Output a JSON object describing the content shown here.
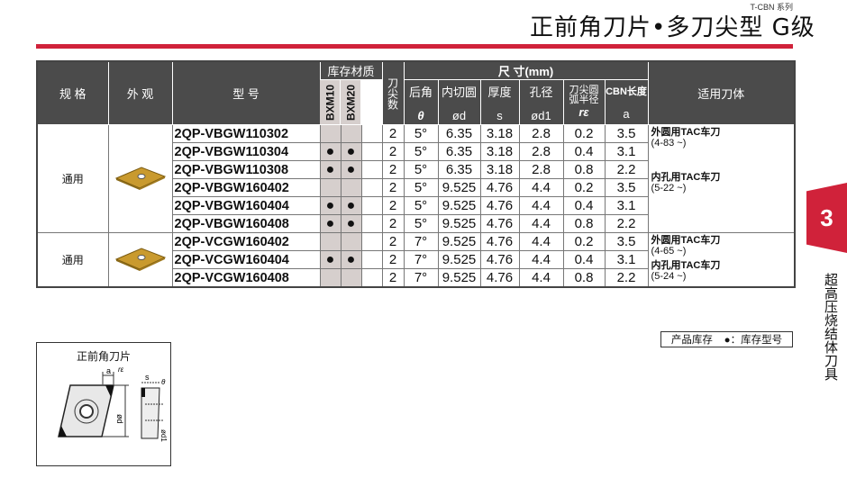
{
  "header": {
    "series": "T-CBN 系列",
    "title": "正前角刀片•多刀尖型 G级"
  },
  "colors": {
    "accent": "#d0223a",
    "header_bg": "#4b4b4b",
    "stock_shade": "#d6cfcd"
  },
  "table": {
    "headers": {
      "spec": "规 格",
      "appearance": "外 观",
      "model": "型 号",
      "stock": "库存材质",
      "grades": [
        "BXM10",
        "BXM20"
      ],
      "corners": "刀尖数",
      "dims": "尺 寸(mm)",
      "clearance": "后角",
      "clearance_sym": "θ",
      "ic": "内切圆",
      "ic_sym": "ød",
      "thick": "厚度",
      "thick_sym": "s",
      "hole": "孔径",
      "hole_sym": "ød1",
      "radius": "刀尖圆弧半径",
      "radius_sym": "rε",
      "cbn": "CBN长度",
      "cbn_sym": "a",
      "holder": "适用刀体"
    },
    "groups": [
      {
        "spec": "通用",
        "image": "rhombic-insert-icon",
        "holders": [
          {
            "name": "外圆用TAC车刀",
            "range": "(4-83 ~)"
          },
          {
            "name": "内孔用TAC车刀",
            "range": "(5-22 ~)"
          }
        ],
        "rows": [
          {
            "model": "2QP-VBGW110302",
            "bxm10": "",
            "bxm20": "",
            "corners": "2",
            "theta": "5°",
            "d": "6.35",
            "s": "3.18",
            "d1": "2.8",
            "r": "0.2",
            "a": "3.5"
          },
          {
            "model": "2QP-VBGW110304",
            "bxm10": "●",
            "bxm20": "●",
            "corners": "2",
            "theta": "5°",
            "d": "6.35",
            "s": "3.18",
            "d1": "2.8",
            "r": "0.4",
            "a": "3.1"
          },
          {
            "model": "2QP-VBGW110308",
            "bxm10": "●",
            "bxm20": "●",
            "corners": "2",
            "theta": "5°",
            "d": "6.35",
            "s": "3.18",
            "d1": "2.8",
            "r": "0.8",
            "a": "2.2"
          },
          {
            "model": "2QP-VBGW160402",
            "bxm10": "",
            "bxm20": "",
            "corners": "2",
            "theta": "5°",
            "d": "9.525",
            "s": "4.76",
            "d1": "4.4",
            "r": "0.2",
            "a": "3.5"
          },
          {
            "model": "2QP-VBGW160404",
            "bxm10": "●",
            "bxm20": "●",
            "corners": "2",
            "theta": "5°",
            "d": "9.525",
            "s": "4.76",
            "d1": "4.4",
            "r": "0.4",
            "a": "3.1"
          },
          {
            "model": "2QP-VBGW160408",
            "bxm10": "●",
            "bxm20": "●",
            "corners": "2",
            "theta": "5°",
            "d": "9.525",
            "s": "4.76",
            "d1": "4.4",
            "r": "0.8",
            "a": "2.2"
          }
        ]
      },
      {
        "spec": "通用",
        "image": "rhombic-insert-icon",
        "holders": [
          {
            "name": "外圆用TAC车刀",
            "range": "(4-65 ~)"
          },
          {
            "name": "内孔用TAC车刀",
            "range": "(5-24 ~)"
          }
        ],
        "rows": [
          {
            "model": "2QP-VCGW160402",
            "bxm10": "",
            "bxm20": "",
            "corners": "2",
            "theta": "7°",
            "d": "9.525",
            "s": "4.76",
            "d1": "4.4",
            "r": "0.2",
            "a": "3.5"
          },
          {
            "model": "2QP-VCGW160404",
            "bxm10": "●",
            "bxm20": "●",
            "corners": "2",
            "theta": "7°",
            "d": "9.525",
            "s": "4.76",
            "d1": "4.4",
            "r": "0.4",
            "a": "3.1"
          },
          {
            "model": "2QP-VCGW160408",
            "bxm10": "",
            "bxm20": "",
            "corners": "2",
            "theta": "7°",
            "d": "9.525",
            "s": "4.76",
            "d1": "4.4",
            "r": "0.8",
            "a": "2.2"
          }
        ]
      }
    ]
  },
  "legend": {
    "label": "产品库存",
    "text": "●：库存型号"
  },
  "side_tab": {
    "number": "3",
    "text": "超高压烧结体刀具"
  },
  "diagram": {
    "title": "正前角刀片",
    "labels": [
      "a",
      "rε",
      "ød",
      "s",
      "θ",
      "ød1"
    ]
  }
}
